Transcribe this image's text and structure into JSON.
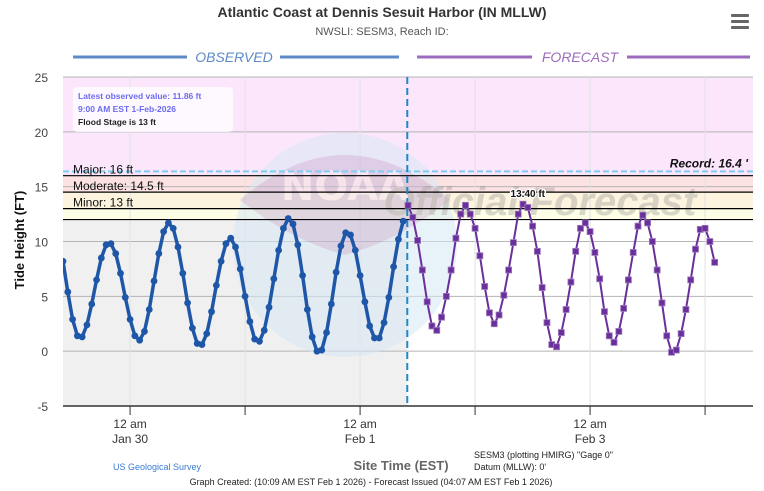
{
  "header": {
    "title": "Atlantic Coast at Dennis Sesuit Harbor (IN MLLW)",
    "subtitle": "NWSLI: SESM3, Reach ID:",
    "menu_icon": "hamburger-menu-icon"
  },
  "legend": {
    "observed": "OBSERVED",
    "forecast": "FORECAST"
  },
  "info_box": {
    "latest": "Latest observed value: 11.86 ft",
    "time": "9:00 AM EST 1-Feb-2026",
    "flood_stage": "Flood Stage is 13 ft"
  },
  "footer": {
    "source": "US Geological Survey",
    "gage": "SESM3 (plotting HMIRG) \"Gage 0\"",
    "datum": "Datum (MLLW): 0'",
    "created": "Graph Created: (10:09 AM EST Feb 1 2026) - Forecast Issued (04:07 AM EST Feb 1 2026)"
  },
  "watermark": {
    "logo": "NOAA",
    "ring_top": "NATIONAL OCEANIC AND ATMOSPHERIC ADMINISTRATION",
    "ring_bottom": "DEPARTMENT OF COMMERCE",
    "stamp": "Official Forecast"
  },
  "colors": {
    "observed": "#1f57a8",
    "forecast": "#6a2f9a",
    "observed_legend": "#5b8ac6",
    "forecast_legend": "#9b6bbd",
    "major_band": "#fbe6fb",
    "moderate_band": "#fde2e2",
    "minor_band": "#fdf4e0",
    "action_band": "#fefde6",
    "observed_bg": "#f0f0f0",
    "record_line": "#7fcdf0",
    "now_line": "#1f88c9"
  },
  "chart_data": {
    "type": "line",
    "title": "Atlantic Coast at Dennis Sesuit Harbor (IN MLLW)",
    "xlabel": "Site Time (EST)",
    "ylabel": "Tide Height (FT)",
    "ylim": [
      -5,
      25
    ],
    "yticks": [
      -5,
      0,
      5,
      10,
      15,
      20,
      25
    ],
    "xlim": [
      "2026-01-29T10:00",
      "2026-02-04T10:00"
    ],
    "xticks": [
      {
        "t": "2026-01-30T00:00",
        "label1": "12 am",
        "label2": "Jan 30"
      },
      {
        "t": "2026-01-31T00:00",
        "label1": "",
        "label2": ""
      },
      {
        "t": "2026-02-01T00:00",
        "label1": "12 am",
        "label2": "Feb 1"
      },
      {
        "t": "2026-02-02T00:00",
        "label1": "",
        "label2": ""
      },
      {
        "t": "2026-02-03T00:00",
        "label1": "12 am",
        "label2": "Feb 3"
      },
      {
        "t": "2026-02-04T00:00",
        "label1": "",
        "label2": ""
      }
    ],
    "grid": true,
    "thresholds": [
      {
        "name": "Record",
        "value": 16.4,
        "label": "Record: 16.4 '"
      },
      {
        "name": "Major",
        "value": 16,
        "label": "Major: 16 ft"
      },
      {
        "name": "Moderate",
        "value": 14.5,
        "label": "Moderate: 14.5 ft"
      },
      {
        "name": "Minor",
        "value": 13,
        "label": "Minor: 13 ft"
      },
      {
        "name": "Action",
        "value": 12,
        "label": ""
      }
    ],
    "annotations": [
      {
        "t": "2026-02-02T11:00",
        "value": 13.4,
        "label": "13.40 ft"
      }
    ],
    "series": [
      {
        "name": "OBSERVED",
        "start": "2026-01-29T10:00",
        "interval_hours": 1,
        "values": [
          8.2,
          5.4,
          2.9,
          1.4,
          1.3,
          2.4,
          4.3,
          6.5,
          8.5,
          9.7,
          9.8,
          8.9,
          7.1,
          4.9,
          2.9,
          1.4,
          1.0,
          1.8,
          3.8,
          6.4,
          8.9,
          10.9,
          11.7,
          11.2,
          9.5,
          7.1,
          4.4,
          2.1,
          0.7,
          0.6,
          1.6,
          3.6,
          6.0,
          8.2,
          9.8,
          10.3,
          9.5,
          7.5,
          5.0,
          2.7,
          1.1,
          0.9,
          1.9,
          4.0,
          6.6,
          9.2,
          11.2,
          12.1,
          11.6,
          9.7,
          6.9,
          3.8,
          1.3,
          0.0,
          0.1,
          1.7,
          4.3,
          7.2,
          9.6,
          10.8,
          10.6,
          9.2,
          6.9,
          4.5,
          2.3,
          1.2,
          1.2,
          2.6,
          4.9,
          7.7,
          10.2,
          11.86
        ]
      },
      {
        "name": "FORECAST",
        "start": "2026-02-01T10:00",
        "interval_hours": 1,
        "values": [
          13.3,
          12.2,
          10.1,
          7.4,
          4.5,
          2.3,
          1.9,
          3.1,
          5.0,
          7.4,
          10.3,
          12.5,
          13.3,
          12.5,
          11.2,
          8.7,
          5.9,
          3.5,
          2.5,
          3.3,
          5.1,
          7.4,
          9.9,
          12.5,
          13.4,
          13.1,
          11.4,
          9.1,
          5.8,
          2.6,
          0.6,
          0.4,
          1.7,
          3.8,
          6.3,
          9.1,
          11.2,
          11.7,
          10.9,
          9.0,
          6.6,
          3.6,
          1.4,
          0.8,
          1.8,
          3.9,
          6.5,
          9.0,
          11.4,
          12.4,
          11.7,
          10.0,
          7.4,
          4.4,
          1.4,
          -0.1,
          0.1,
          1.6,
          3.8,
          6.5,
          9.3,
          11.1,
          11.2,
          10.0,
          8.1
        ]
      }
    ]
  }
}
